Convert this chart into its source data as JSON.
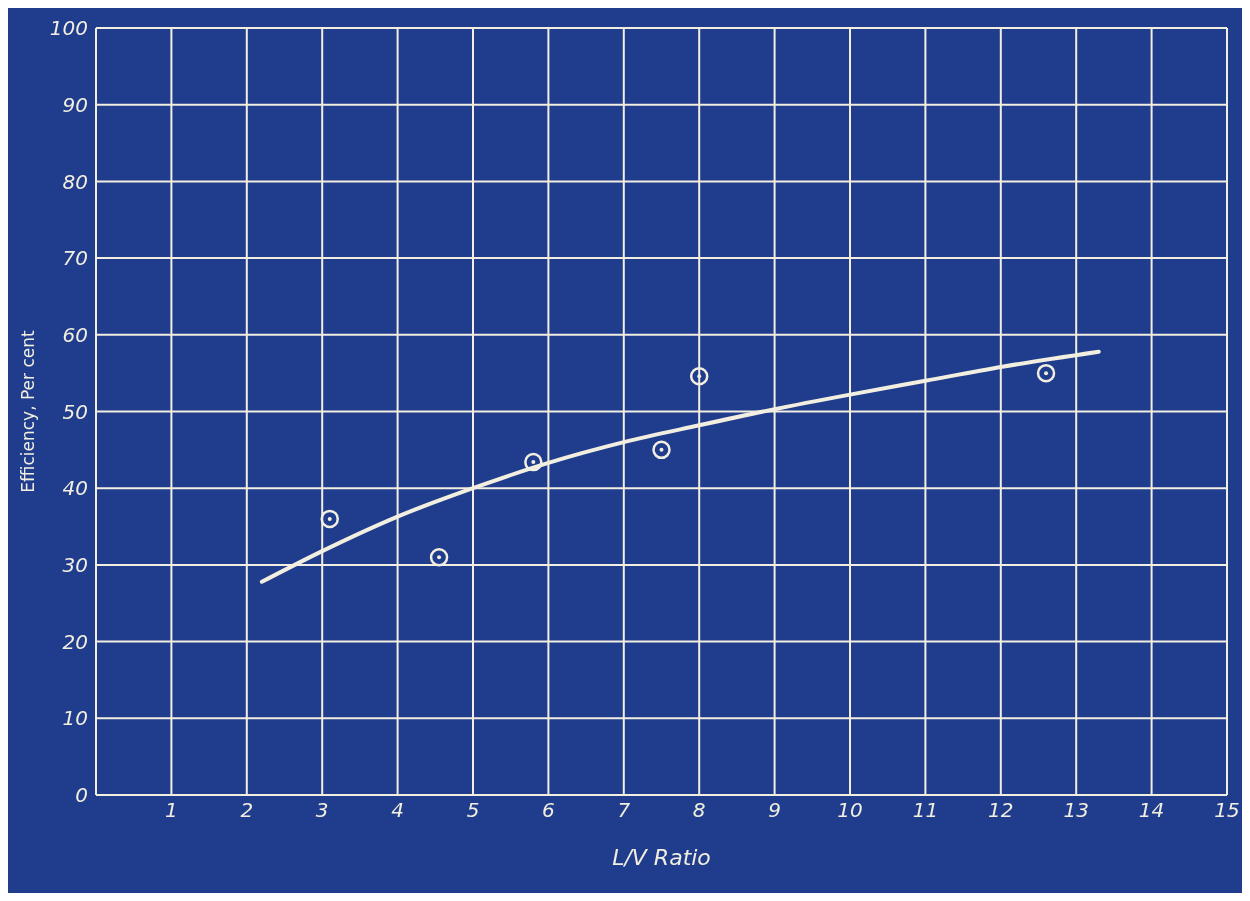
{
  "chart_data": {
    "type": "scatter",
    "xlabel": "L/V Ratio",
    "ylabel": "Efficiency, Per cent",
    "xlim": [
      0,
      15
    ],
    "xticks": [
      1,
      2,
      3,
      4,
      5,
      6,
      7,
      8,
      9,
      10,
      11,
      12,
      13,
      14,
      15
    ],
    "ylim": [
      0,
      100
    ],
    "yticks": [
      0,
      10,
      20,
      30,
      40,
      50,
      60,
      70,
      80,
      90,
      100
    ],
    "grid": true,
    "series": [
      {
        "color": "#f2eee0",
        "marker": "circle",
        "x": [
          3.1,
          4.55,
          5.8,
          7.5,
          8.0,
          12.6
        ],
        "values": [
          36,
          31,
          43.4,
          45,
          54.6,
          55
        ]
      },
      {
        "type": "line",
        "marker": "none",
        "color": "#f2eee0",
        "x": [
          2.2,
          3,
          4,
          5,
          6,
          7,
          8,
          9,
          10,
          11,
          12,
          13.3
        ],
        "values": [
          27.8,
          31.8,
          36.3,
          40,
          43.3,
          46,
          48.2,
          50.3,
          52.2,
          54,
          55.8,
          57.8
        ]
      }
    ]
  }
}
